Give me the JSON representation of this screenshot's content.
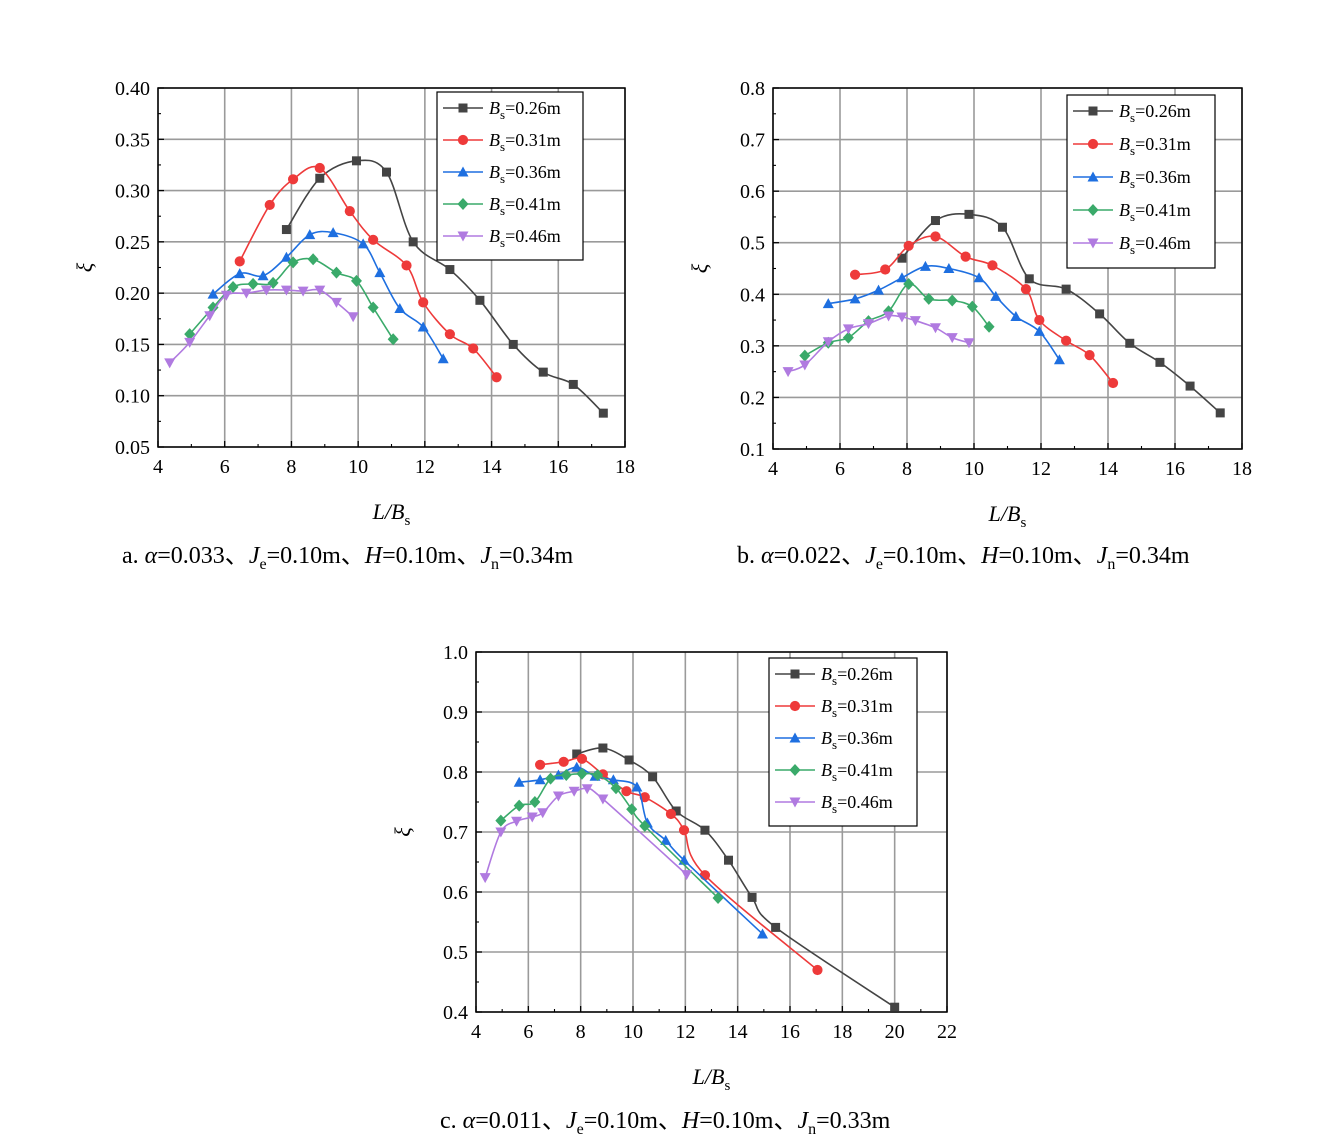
{
  "chart_data": [
    {
      "type": "line",
      "caption": "a. α=0.033、Je=0.10m、H=0.10m、Jn=0.34m",
      "xlabel": "L/Bs",
      "ylabel": "ξ",
      "xlim": [
        4,
        18
      ],
      "ylim": [
        0.05,
        0.4
      ],
      "xticks": [
        "4",
        "6",
        "8",
        "10",
        "12",
        "14",
        "16",
        "18"
      ],
      "yticks": [
        "0.05",
        "0.10",
        "0.15",
        "0.20",
        "0.25",
        "0.30",
        "0.35",
        "0.40"
      ],
      "grid": true,
      "legend": "top-right",
      "series": [
        {
          "name": "Bs=0.26m",
          "color": "#444444",
          "marker": "square",
          "x": [
            7.85,
            8.85,
            9.95,
            10.85,
            11.65,
            12.75,
            13.65,
            14.65,
            15.55,
            16.45,
            17.35
          ],
          "y": [
            0.262,
            0.312,
            0.329,
            0.318,
            0.25,
            0.223,
            0.193,
            0.15,
            0.123,
            0.111,
            0.083
          ]
        },
        {
          "name": "Bs=0.31m",
          "color": "#ee3a3a",
          "marker": "circle",
          "x": [
            6.45,
            7.35,
            8.05,
            8.85,
            9.75,
            10.45,
            11.45,
            11.95,
            12.75,
            13.45,
            14.15
          ],
          "y": [
            0.231,
            0.286,
            0.311,
            0.322,
            0.28,
            0.252,
            0.227,
            0.191,
            0.16,
            0.146,
            0.118
          ]
        },
        {
          "name": "Bs=0.36m",
          "color": "#1e6fe0",
          "marker": "triangle-up",
          "x": [
            5.65,
            6.45,
            7.15,
            7.85,
            8.55,
            9.25,
            10.15,
            10.65,
            11.25,
            11.95,
            12.55
          ],
          "y": [
            0.199,
            0.219,
            0.217,
            0.235,
            0.257,
            0.259,
            0.248,
            0.22,
            0.185,
            0.167,
            0.136
          ]
        },
        {
          "name": "Bs=0.41m",
          "color": "#3aaa6a",
          "marker": "diamond",
          "x": [
            4.95,
            5.65,
            6.25,
            6.85,
            7.45,
            8.05,
            8.65,
            9.35,
            9.95,
            10.45,
            11.05
          ],
          "y": [
            0.16,
            0.186,
            0.206,
            0.209,
            0.21,
            0.23,
            0.233,
            0.22,
            0.212,
            0.186,
            0.155
          ]
        },
        {
          "name": "Bs=0.46m",
          "color": "#b07ae0",
          "marker": "triangle-down",
          "x": [
            4.35,
            4.95,
            5.55,
            6.05,
            6.65,
            7.25,
            7.85,
            8.35,
            8.85,
            9.35,
            9.85
          ],
          "y": [
            0.132,
            0.152,
            0.178,
            0.198,
            0.2,
            0.203,
            0.203,
            0.202,
            0.203,
            0.191,
            0.177
          ]
        }
      ]
    },
    {
      "type": "line",
      "caption": "b. α=0.022、Je=0.10m、H=0.10m、Jn=0.34m",
      "xlabel": "L/Bs",
      "ylabel": "ξ",
      "xlim": [
        4,
        18
      ],
      "ylim": [
        0.1,
        0.8
      ],
      "xticks": [
        "4",
        "6",
        "8",
        "10",
        "12",
        "14",
        "16",
        "18"
      ],
      "yticks": [
        "0.1",
        "0.2",
        "0.3",
        "0.4",
        "0.5",
        "0.6",
        "0.7",
        "0.8"
      ],
      "grid": true,
      "legend": "top-right",
      "series": [
        {
          "name": "Bs=0.26m",
          "color": "#444444",
          "marker": "square",
          "x": [
            7.85,
            8.85,
            9.85,
            10.85,
            11.65,
            12.75,
            13.75,
            14.65,
            15.55,
            16.45,
            17.35
          ],
          "y": [
            0.47,
            0.543,
            0.555,
            0.53,
            0.43,
            0.41,
            0.362,
            0.305,
            0.268,
            0.222,
            0.17
          ]
        },
        {
          "name": "Bs=0.31m",
          "color": "#ee3a3a",
          "marker": "circle",
          "x": [
            6.45,
            7.35,
            8.05,
            8.85,
            9.75,
            10.55,
            11.55,
            11.95,
            12.75,
            13.45,
            14.15
          ],
          "y": [
            0.438,
            0.448,
            0.494,
            0.512,
            0.473,
            0.456,
            0.41,
            0.35,
            0.31,
            0.282,
            0.228
          ]
        },
        {
          "name": "Bs=0.36m",
          "color": "#1e6fe0",
          "marker": "triangle-up",
          "x": [
            5.65,
            6.45,
            7.15,
            7.85,
            8.55,
            9.25,
            10.15,
            10.65,
            11.25,
            11.95,
            12.55
          ],
          "y": [
            0.382,
            0.391,
            0.408,
            0.432,
            0.454,
            0.45,
            0.432,
            0.396,
            0.357,
            0.328,
            0.273
          ]
        },
        {
          "name": "Bs=0.41m",
          "color": "#3aaa6a",
          "marker": "diamond",
          "x": [
            4.95,
            5.65,
            6.25,
            6.85,
            7.45,
            8.05,
            8.65,
            9.35,
            9.95,
            10.45
          ],
          "y": [
            0.281,
            0.306,
            0.316,
            0.348,
            0.367,
            0.42,
            0.391,
            0.388,
            0.376,
            0.337
          ]
        },
        {
          "name": "Bs=0.46m",
          "color": "#b07ae0",
          "marker": "triangle-down",
          "x": [
            4.45,
            4.95,
            5.65,
            6.25,
            6.85,
            7.45,
            7.85,
            8.25,
            8.85,
            9.35,
            9.85
          ],
          "y": [
            0.25,
            0.263,
            0.308,
            0.333,
            0.343,
            0.358,
            0.356,
            0.349,
            0.335,
            0.316,
            0.306
          ]
        }
      ]
    },
    {
      "type": "line",
      "caption": "c. α=0.011、Je=0.10m、H=0.10m、Jn=0.33m",
      "xlabel": "L/Bs",
      "ylabel": "ξ",
      "xlim": [
        4,
        22
      ],
      "ylim": [
        0.4,
        1.0
      ],
      "xticks": [
        "4",
        "6",
        "8",
        "10",
        "12",
        "14",
        "16",
        "18",
        "20",
        "22"
      ],
      "yticks": [
        "0.4",
        "0.5",
        "0.6",
        "0.7",
        "0.8",
        "0.9",
        "1.0"
      ],
      "grid": true,
      "legend": "top-right",
      "series": [
        {
          "name": "Bs=0.26m",
          "color": "#444444",
          "marker": "square",
          "x": [
            7.85,
            8.85,
            9.85,
            10.75,
            11.65,
            12.75,
            13.65,
            14.55,
            15.45,
            20.0
          ],
          "y": [
            0.83,
            0.84,
            0.82,
            0.792,
            0.735,
            0.703,
            0.653,
            0.591,
            0.541,
            0.408
          ]
        },
        {
          "name": "Bs=0.31m",
          "color": "#ee3a3a",
          "marker": "circle",
          "x": [
            6.45,
            7.35,
            8.05,
            8.85,
            9.75,
            10.45,
            11.45,
            11.95,
            12.75,
            17.05
          ],
          "y": [
            0.812,
            0.817,
            0.822,
            0.796,
            0.768,
            0.758,
            0.73,
            0.703,
            0.628,
            0.47
          ]
        },
        {
          "name": "Bs=0.36m",
          "color": "#1e6fe0",
          "marker": "triangle-up",
          "x": [
            5.65,
            6.45,
            7.15,
            7.85,
            8.55,
            9.25,
            10.15,
            10.55,
            11.25,
            11.95,
            14.95
          ],
          "y": [
            0.783,
            0.787,
            0.795,
            0.808,
            0.793,
            0.787,
            0.775,
            0.715,
            0.686,
            0.653,
            0.53
          ]
        },
        {
          "name": "Bs=0.41m",
          "color": "#3aaa6a",
          "marker": "diamond",
          "x": [
            4.95,
            5.65,
            6.25,
            6.85,
            7.45,
            8.05,
            8.65,
            9.35,
            9.95,
            10.45,
            13.25
          ],
          "y": [
            0.719,
            0.744,
            0.75,
            0.789,
            0.795,
            0.797,
            0.795,
            0.773,
            0.738,
            0.71,
            0.59
          ]
        },
        {
          "name": "Bs=0.46m",
          "color": "#b07ae0",
          "marker": "triangle-down",
          "x": [
            4.35,
            4.95,
            5.55,
            6.15,
            6.55,
            7.15,
            7.75,
            8.25,
            8.85,
            12.05
          ],
          "y": [
            0.624,
            0.7,
            0.718,
            0.725,
            0.732,
            0.76,
            0.768,
            0.772,
            0.755,
            0.629
          ]
        }
      ]
    }
  ]
}
